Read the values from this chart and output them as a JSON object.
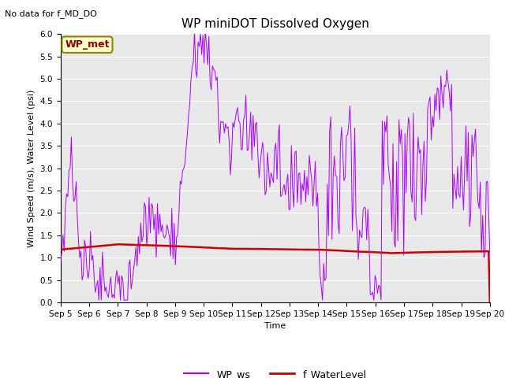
{
  "title": "WP miniDOT Dissolved Oxygen",
  "top_left_text": "No data for f_MD_DO",
  "ylabel": "Wind Speed (m/s), Water Level (psi)",
  "xlabel": "Time",
  "ylim": [
    0.0,
    6.0
  ],
  "yticks": [
    0.0,
    0.5,
    1.0,
    1.5,
    2.0,
    2.5,
    3.0,
    3.5,
    4.0,
    4.5,
    5.0,
    5.5,
    6.0
  ],
  "bg_color": "#e8e8e8",
  "wp_ws_color": "#aa00ff",
  "f_wl_color": "#cc0000",
  "legend_wp_ws": "WP_ws",
  "legend_f_wl": "f_WaterLevel",
  "box_label": "WP_met",
  "box_facecolor": "#ffffcc",
  "box_edgecolor": "#888800",
  "title_fontsize": 11,
  "label_fontsize": 8,
  "tick_fontsize": 7.5,
  "legend_fontsize": 9,
  "annotation_fontsize": 8
}
